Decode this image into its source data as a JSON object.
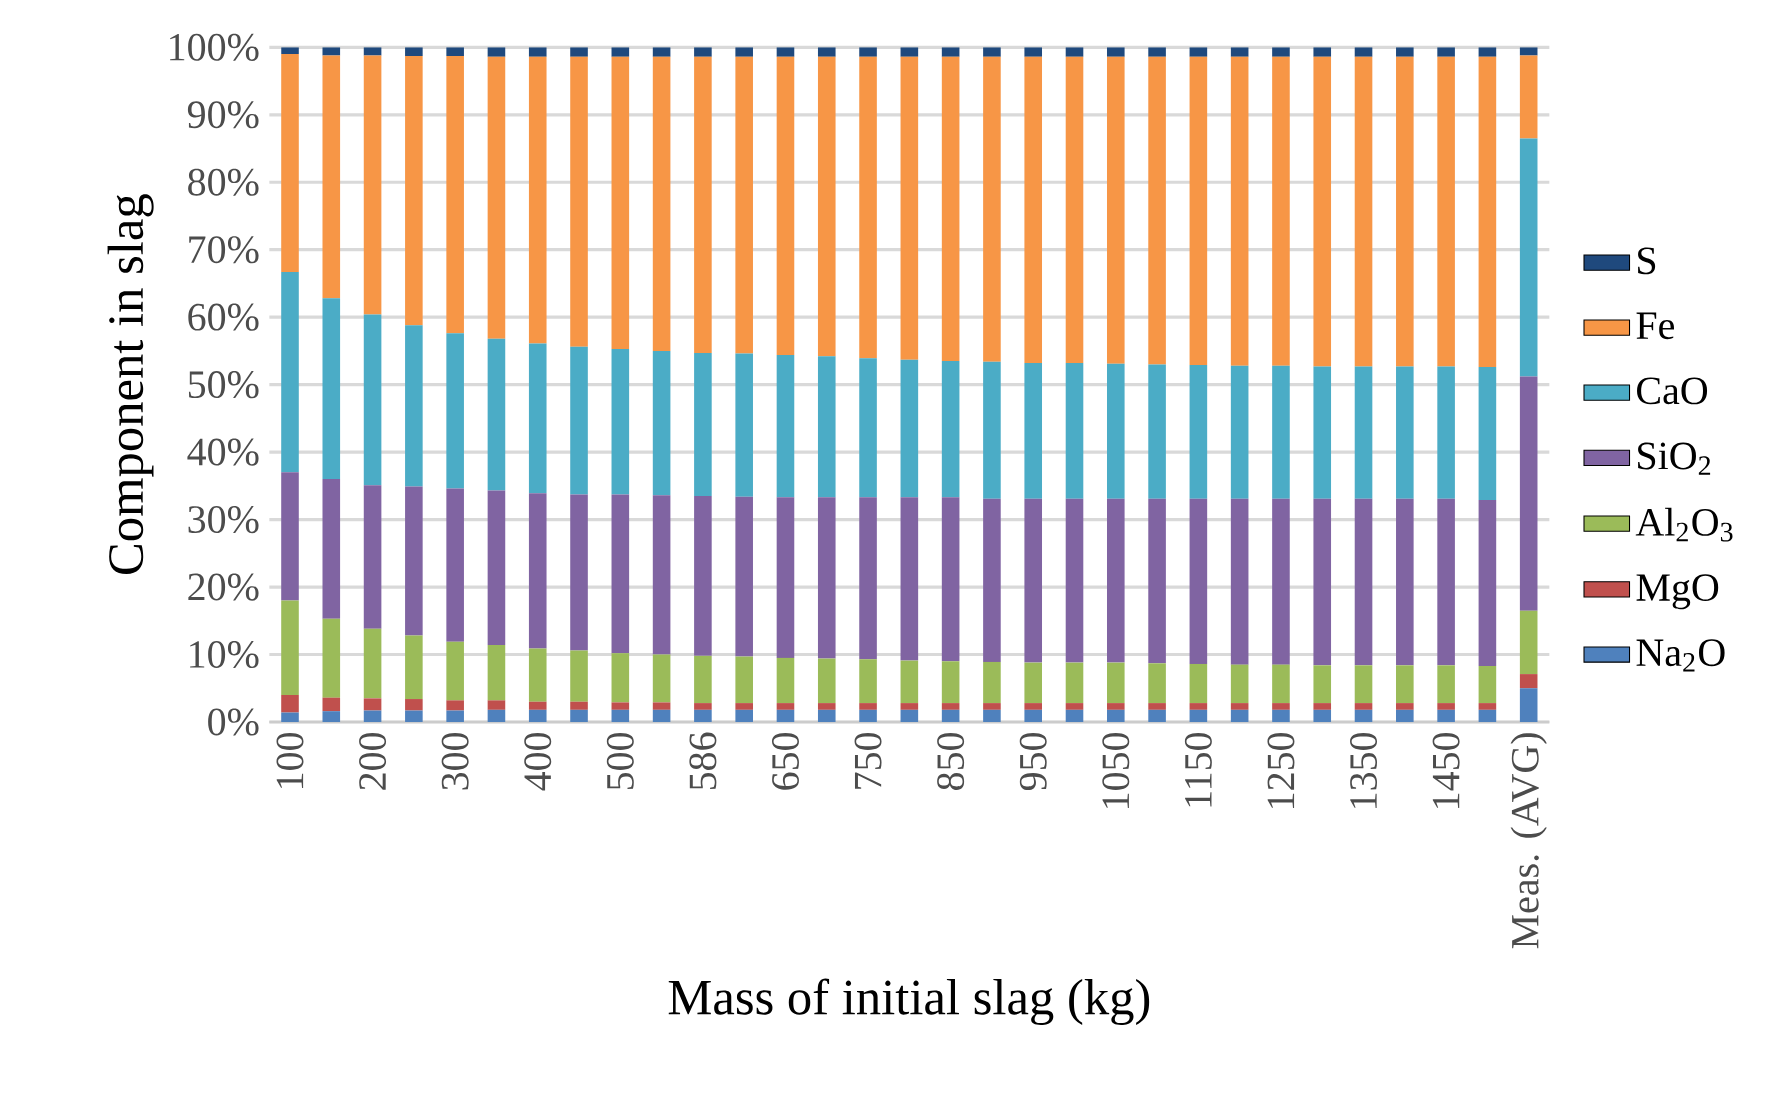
{
  "chart_data": {
    "type": "bar",
    "stacked": true,
    "xlabel": "Mass of initial slag (kg)",
    "ylabel": "Component in slag",
    "categories": [
      "100",
      null,
      "200",
      null,
      "300",
      null,
      "400",
      null,
      "500",
      null,
      "586",
      null,
      "650",
      null,
      "750",
      null,
      "850",
      null,
      "950",
      null,
      "1050",
      null,
      "1150",
      null,
      "1250",
      null,
      "1350",
      null,
      "1450",
      null,
      "Meas. (AVG)"
    ],
    "ylim": [
      0,
      100
    ],
    "yticks": [
      {
        "value": 0,
        "label": "0%"
      },
      {
        "value": 10,
        "label": "10%"
      },
      {
        "value": 20,
        "label": "20%"
      },
      {
        "value": 30,
        "label": "30%"
      },
      {
        "value": 40,
        "label": "40%"
      },
      {
        "value": 50,
        "label": "50%"
      },
      {
        "value": 60,
        "label": "60%"
      },
      {
        "value": 70,
        "label": "70%"
      },
      {
        "value": 80,
        "label": "80%"
      },
      {
        "value": 90,
        "label": "90%"
      },
      {
        "value": 100,
        "label": "100%"
      }
    ],
    "grid": "y",
    "legend": "right",
    "series": [
      {
        "name": "Na$_{2}$O",
        "color": "#4f81bd",
        "values": [
          1.4,
          1.6,
          1.7,
          1.7,
          1.7,
          1.8,
          1.8,
          1.8,
          1.8,
          1.8,
          1.8,
          1.8,
          1.8,
          1.8,
          1.8,
          1.8,
          1.8,
          1.8,
          1.8,
          1.8,
          1.8,
          1.8,
          1.8,
          1.8,
          1.8,
          1.8,
          1.8,
          1.8,
          1.8,
          1.8,
          5.0
        ]
      },
      {
        "name": "MgO",
        "color": "#c0504d",
        "values": [
          2.6,
          2.0,
          1.8,
          1.7,
          1.5,
          1.4,
          1.2,
          1.2,
          1.1,
          1.1,
          1.0,
          1.0,
          1.0,
          1.0,
          1.0,
          1.0,
          1.0,
          1.0,
          1.0,
          1.0,
          1.0,
          1.0,
          1.0,
          1.0,
          1.0,
          1.0,
          1.0,
          1.0,
          1.0,
          1.0,
          2.1
        ]
      },
      {
        "name": "Al$_{2}$O$_{3}$",
        "color": "#9bbb59",
        "values": [
          14.0,
          11.7,
          10.3,
          9.4,
          8.7,
          8.2,
          7.9,
          7.6,
          7.3,
          7.1,
          7.0,
          6.9,
          6.7,
          6.6,
          6.5,
          6.3,
          6.2,
          6.1,
          6.0,
          6.0,
          6.0,
          5.9,
          5.8,
          5.7,
          5.7,
          5.6,
          5.6,
          5.6,
          5.6,
          5.5,
          9.4
        ]
      },
      {
        "name": "SiO$_{2}$",
        "color": "#8064a2",
        "values": [
          19.0,
          20.7,
          21.3,
          22.1,
          22.7,
          22.9,
          23.0,
          23.1,
          23.5,
          23.6,
          23.7,
          23.7,
          23.8,
          23.9,
          24.0,
          24.2,
          24.3,
          24.2,
          24.3,
          24.3,
          24.3,
          24.4,
          24.5,
          24.6,
          24.6,
          24.7,
          24.7,
          24.7,
          24.7,
          24.6,
          34.7
        ]
      },
      {
        "name": "CaO",
        "color": "#4bacc6",
        "values": [
          29.7,
          26.8,
          25.3,
          23.9,
          23.0,
          22.5,
          22.2,
          21.9,
          21.6,
          21.4,
          21.2,
          21.2,
          21.1,
          20.9,
          20.6,
          20.4,
          20.2,
          20.3,
          20.1,
          20.1,
          20.0,
          19.9,
          19.8,
          19.7,
          19.7,
          19.6,
          19.6,
          19.6,
          19.6,
          19.7,
          35.3
        ]
      },
      {
        "name": "Fe",
        "color": "#f79646",
        "values": [
          32.3,
          36.0,
          38.4,
          39.9,
          41.1,
          41.8,
          42.5,
          43.0,
          43.3,
          43.6,
          43.9,
          44.0,
          44.2,
          44.4,
          44.7,
          44.9,
          45.1,
          45.2,
          45.4,
          45.4,
          45.5,
          45.6,
          45.7,
          45.8,
          45.8,
          45.9,
          45.9,
          45.9,
          45.9,
          46.0,
          12.3
        ]
      },
      {
        "name": "S",
        "color": "#1f497d",
        "values": [
          1.0,
          1.2,
          1.2,
          1.3,
          1.3,
          1.4,
          1.4,
          1.4,
          1.4,
          1.4,
          1.4,
          1.4,
          1.4,
          1.4,
          1.4,
          1.4,
          1.4,
          1.4,
          1.4,
          1.4,
          1.4,
          1.4,
          1.4,
          1.4,
          1.4,
          1.4,
          1.4,
          1.4,
          1.4,
          1.4,
          1.2
        ]
      }
    ]
  }
}
